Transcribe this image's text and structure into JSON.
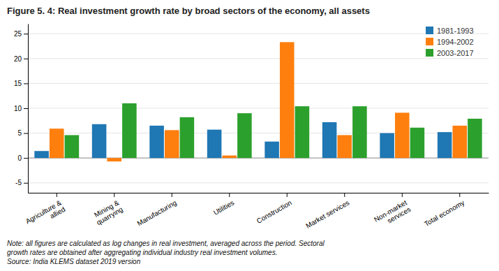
{
  "chart_data": {
    "type": "bar",
    "title": "Figure 5. 4: Real investment growth rate by broad sectors of the economy, all assets",
    "categories": [
      "Agriculture &\nallied",
      "Mining &\nquarrying",
      "Manufacturing",
      "Utilities",
      "Construction",
      "Market services",
      "Non-market\nservices",
      "Total economy"
    ],
    "series": [
      {
        "name": "1981-1993",
        "values": [
          1.4,
          6.8,
          6.5,
          5.7,
          3.3,
          7.2,
          5.0,
          5.2
        ]
      },
      {
        "name": "1994-2002",
        "values": [
          5.9,
          -0.7,
          5.6,
          0.5,
          23.3,
          4.6,
          9.1,
          6.5
        ]
      },
      {
        "name": "2003-2017",
        "values": [
          4.6,
          11.0,
          8.2,
          9.0,
          10.4,
          10.4,
          6.1,
          7.9
        ]
      }
    ],
    "ylim": [
      -7,
      27
    ],
    "yticks": [
      -5,
      0,
      5,
      10,
      15,
      20,
      25
    ],
    "grid": true,
    "legend": "upper right",
    "annotations": [
      "Note: all figures are calculated as log changes in real investment, averaged across the period. Sectoral",
      "growth rates are obtained after aggregating individual industry real investment volumes.",
      "Source: India KLEMS dataset 2019 version"
    ]
  }
}
